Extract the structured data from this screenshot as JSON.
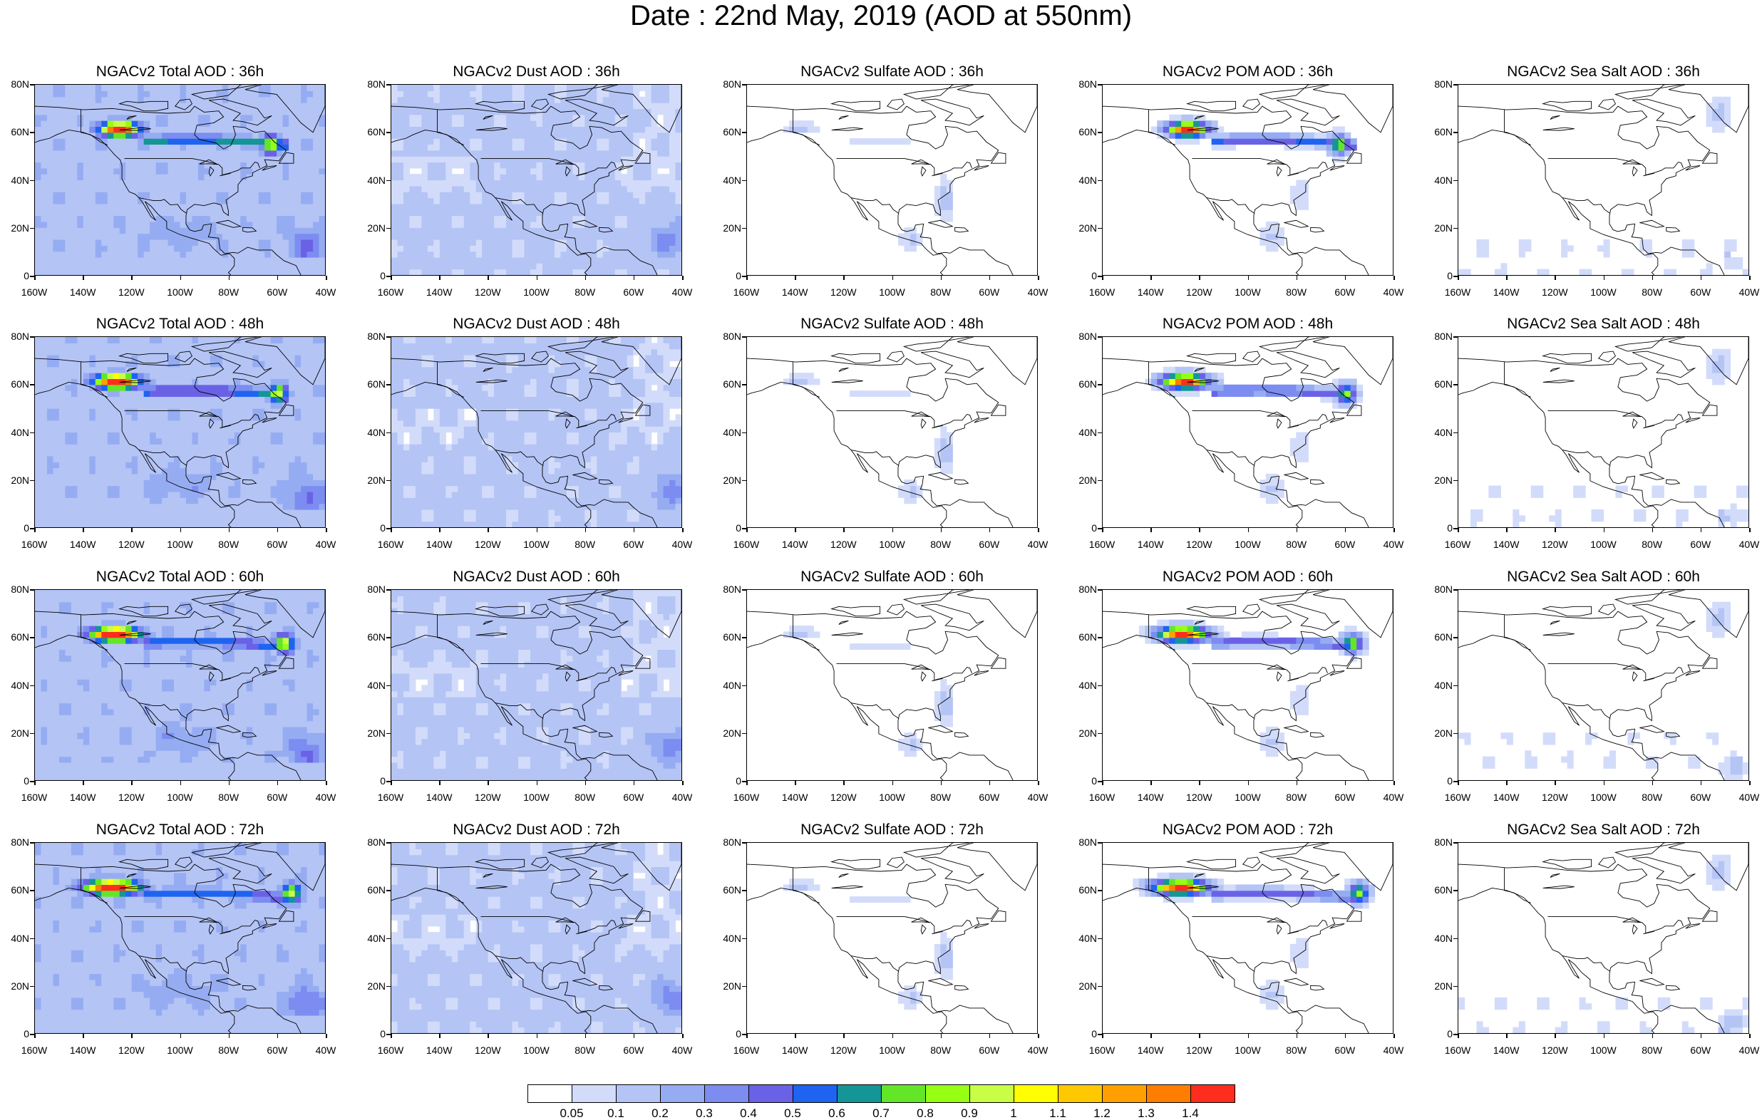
{
  "title": "Date : 22nd May, 2019 (AOD at 550nm)",
  "x_ticks": [
    "160W",
    "140W",
    "120W",
    "100W",
    "80W",
    "60W",
    "40W"
  ],
  "y_ticks": [
    "80N",
    "60N",
    "40N",
    "20N",
    "0"
  ],
  "lon_range": [
    -160,
    -40
  ],
  "lat_range": [
    0,
    80
  ],
  "colorbar": {
    "labels": [
      "0.05",
      "0.1",
      "0.2",
      "0.3",
      "0.4",
      "0.5",
      "0.6",
      "0.7",
      "0.8",
      "0.9",
      "1",
      "1.1",
      "1.2",
      "1.3",
      "1.4"
    ],
    "colors": [
      "#ffffff",
      "#d2dcfa",
      "#b4c4f5",
      "#96acf2",
      "#7d8cf0",
      "#6a62e6",
      "#1e64f0",
      "#149696",
      "#64e628",
      "#96ff14",
      "#c8ff46",
      "#ffff00",
      "#ffc800",
      "#ffa000",
      "#ff7d00",
      "#ff2d1e"
    ]
  },
  "panels": [
    {
      "title": "NGACv2 Total AOD : 36h",
      "product": "total",
      "hour": 36
    },
    {
      "title": "NGACv2 Dust AOD : 36h",
      "product": "dust",
      "hour": 36
    },
    {
      "title": "NGACv2 Sulfate AOD : 36h",
      "product": "sulfate",
      "hour": 36
    },
    {
      "title": "NGACv2 POM AOD : 36h",
      "product": "pom",
      "hour": 36
    },
    {
      "title": "NGACv2 Sea Salt AOD : 36h",
      "product": "seasalt",
      "hour": 36
    },
    {
      "title": "NGACv2 Total AOD : 48h",
      "product": "total",
      "hour": 48
    },
    {
      "title": "NGACv2 Dust AOD : 48h",
      "product": "dust",
      "hour": 48
    },
    {
      "title": "NGACv2 Sulfate AOD : 48h",
      "product": "sulfate",
      "hour": 48
    },
    {
      "title": "NGACv2 POM AOD : 48h",
      "product": "pom",
      "hour": 48
    },
    {
      "title": "NGACv2 Sea Salt AOD : 48h",
      "product": "seasalt",
      "hour": 48
    },
    {
      "title": "NGACv2 Total AOD : 60h",
      "product": "total",
      "hour": 60
    },
    {
      "title": "NGACv2 Dust AOD : 60h",
      "product": "dust",
      "hour": 60
    },
    {
      "title": "NGACv2 Sulfate AOD : 60h",
      "product": "sulfate",
      "hour": 60
    },
    {
      "title": "NGACv2 POM AOD : 60h",
      "product": "pom",
      "hour": 60
    },
    {
      "title": "NGACv2 Sea Salt AOD : 60h",
      "product": "seasalt",
      "hour": 60
    },
    {
      "title": "NGACv2 Total AOD : 72h",
      "product": "total",
      "hour": 72
    },
    {
      "title": "NGACv2 Dust AOD : 72h",
      "product": "dust",
      "hour": 72
    },
    {
      "title": "NGACv2 Sulfate AOD : 72h",
      "product": "sulfate",
      "hour": 72
    },
    {
      "title": "NGACv2 POM AOD : 72h",
      "product": "pom",
      "hour": 72
    },
    {
      "title": "NGACv2 Sea Salt  AOD : 72h",
      "product": "seasalt",
      "hour": 72
    }
  ]
}
